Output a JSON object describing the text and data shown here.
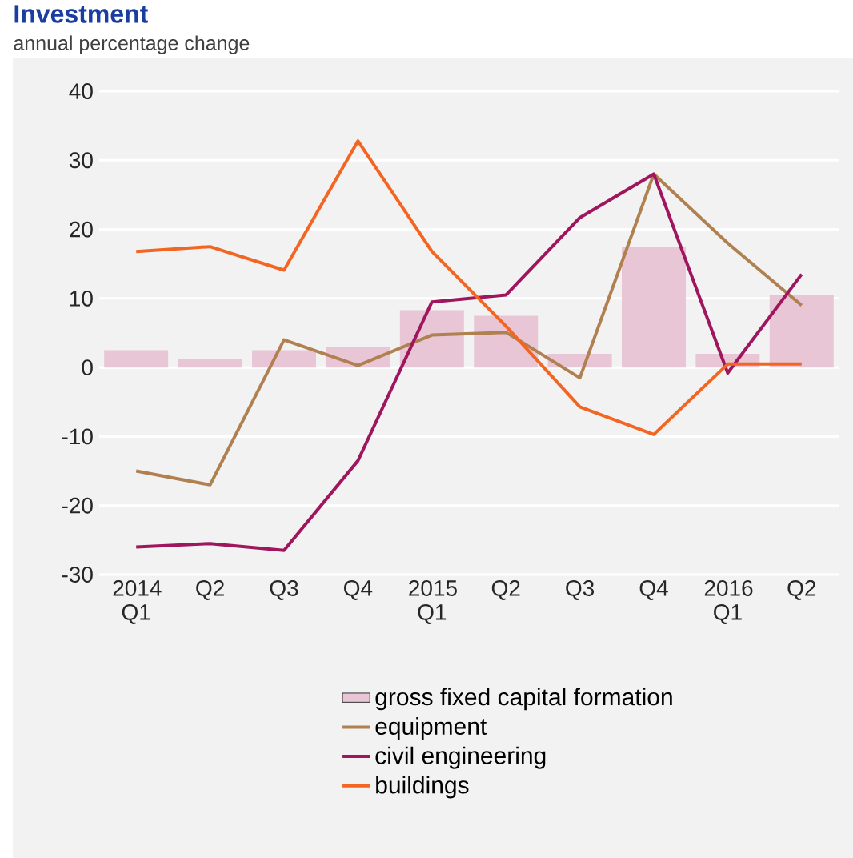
{
  "chart_data": {
    "type": "line",
    "title": "Investment",
    "subtitle": "annual percentage change",
    "categories": [
      "2014 Q1",
      "Q2",
      "Q3",
      "Q4",
      "2015 Q1",
      "Q2",
      "Q3",
      "Q4",
      "2016 Q1",
      "Q2"
    ],
    "series": [
      {
        "name": "gross fixed capital formation",
        "type": "bar",
        "color": "#e8c6d6",
        "values": [
          2.5,
          1.2,
          2.5,
          3.0,
          8.3,
          7.5,
          2.0,
          17.5,
          2.0,
          10.5
        ]
      },
      {
        "name": "equipment",
        "color": "#b08050",
        "values": [
          -15,
          -17,
          4,
          0.3,
          4.7,
          5.1,
          -1.5,
          28,
          18,
          9
        ]
      },
      {
        "name": "civil engineering",
        "color": "#a0165e",
        "values": [
          -26,
          -25.5,
          -26.5,
          -13.5,
          9.5,
          10.5,
          21.7,
          28,
          -0.8,
          13.5
        ]
      },
      {
        "name": "buildings",
        "color": "#f26522",
        "values": [
          16.8,
          17.5,
          14.1,
          32.8,
          16.8,
          6,
          -5.7,
          -9.7,
          0.5,
          0.5
        ]
      }
    ],
    "ylim": [
      -30,
      40
    ],
    "yticks": [
      -30,
      -20,
      -10,
      0,
      10,
      20,
      30,
      40
    ],
    "grid": "y",
    "legend": "bottom"
  }
}
